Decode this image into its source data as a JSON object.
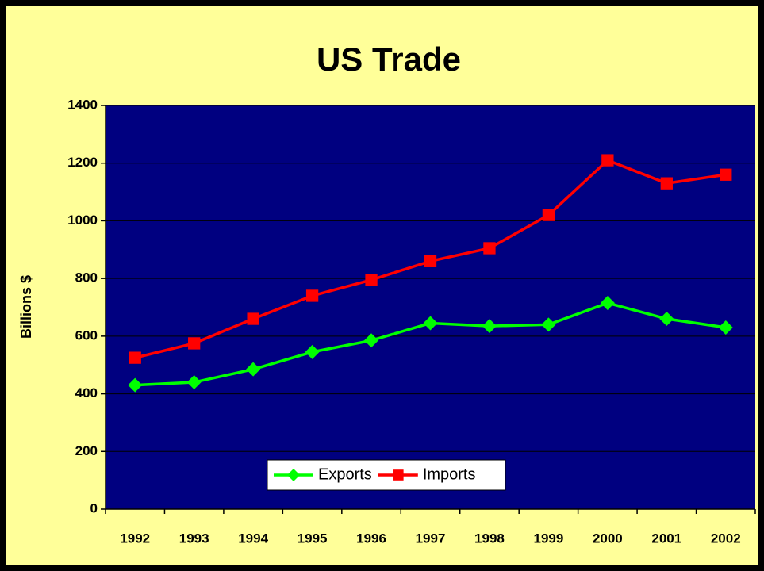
{
  "chart_data": {
    "type": "line",
    "title": "US Trade",
    "y_label": "Billions $",
    "categories": [
      "1992",
      "1993",
      "1994",
      "1995",
      "1996",
      "1997",
      "1998",
      "1999",
      "2000",
      "2001",
      "2002"
    ],
    "series": [
      {
        "name": "Exports",
        "color": "#00ff00",
        "marker": "diamond",
        "values": [
          430,
          440,
          485,
          545,
          585,
          645,
          635,
          640,
          715,
          660,
          630
        ]
      },
      {
        "name": "Imports",
        "color": "#ff0000",
        "marker": "square",
        "values": [
          525,
          575,
          660,
          740,
          795,
          860,
          905,
          1020,
          1210,
          1130,
          1160
        ]
      }
    ],
    "ylim": [
      0,
      1400
    ],
    "yticks": [
      0,
      200,
      400,
      600,
      800,
      1000,
      1200,
      1400
    ],
    "grid": true,
    "background": "#ffff99",
    "plot_background": "#000080",
    "legend": "bottom"
  }
}
